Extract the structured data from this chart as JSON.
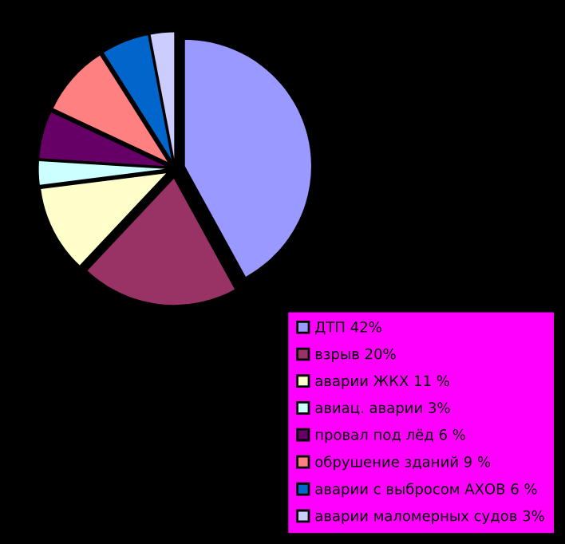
{
  "chart_data": {
    "type": "pie",
    "categories": [
      "ДТП 42%",
      "взрыв 20%",
      "аварии ЖКХ 11 %",
      "авиац. аварии 3%",
      "провал под лёд 6 %",
      "обрушение зданий 9 %",
      "аварии с выбросом АХОВ 6 %",
      "аварии маломерных судов 3%"
    ],
    "values": [
      42,
      20,
      11,
      3,
      6,
      9,
      6,
      3
    ],
    "colors": [
      "#9999ff",
      "#993366",
      "#ffffcc",
      "#ccffff",
      "#660066",
      "#ff8080",
      "#0066cc",
      "#ccccff"
    ],
    "legend": "bottom right"
  }
}
